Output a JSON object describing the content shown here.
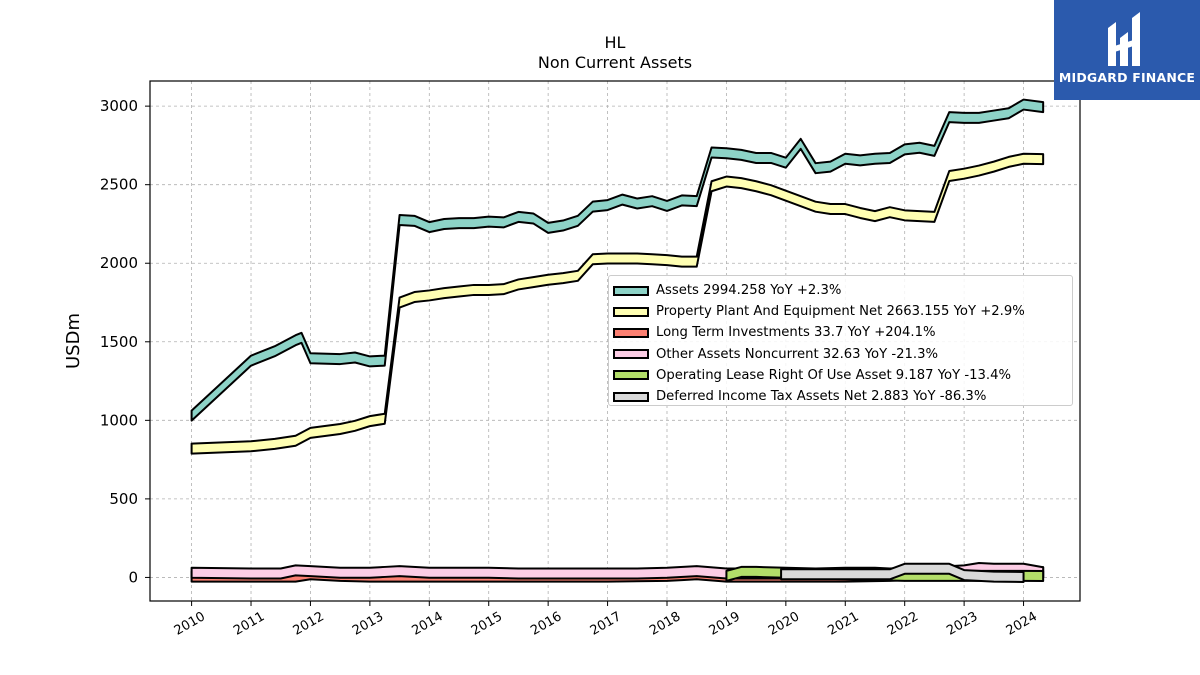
{
  "title": "HL",
  "subtitle": "Non Current  Assets",
  "logo": {
    "text": "MIDGARD FINANCE",
    "color": "#2b5aad"
  },
  "chart_data": {
    "type": "area",
    "ylabel": "USDm",
    "xlim": [
      2009.3,
      2024.95
    ],
    "ylim": [
      -150,
      3160
    ],
    "grid": true,
    "legend_position": "center-right",
    "x_ticks": [
      "2010",
      "2011",
      "2012",
      "2013",
      "2014",
      "2015",
      "2016",
      "2017",
      "2018",
      "2019",
      "2020",
      "2021",
      "2022",
      "2023",
      "2024"
    ],
    "y_ticks": [
      0,
      500,
      1000,
      1500,
      2000,
      2500,
      3000
    ],
    "series": [
      {
        "name": "Assets",
        "legend": "Assets  2994.258 YoY +2.3%",
        "color": "#8dd3c7",
        "points": [
          [
            2010.0,
            1030
          ],
          [
            2011.0,
            1380
          ],
          [
            2011.4,
            1440
          ],
          [
            2011.75,
            1510
          ],
          [
            2011.85,
            1525
          ],
          [
            2012.0,
            1395
          ],
          [
            2012.5,
            1390
          ],
          [
            2012.75,
            1400
          ],
          [
            2013.0,
            1375
          ],
          [
            2013.25,
            1380
          ],
          [
            2013.5,
            2275
          ],
          [
            2013.75,
            2270
          ],
          [
            2014.0,
            2230
          ],
          [
            2014.25,
            2250
          ],
          [
            2014.5,
            2255
          ],
          [
            2014.75,
            2255
          ],
          [
            2015.0,
            2265
          ],
          [
            2015.25,
            2260
          ],
          [
            2015.5,
            2295
          ],
          [
            2015.75,
            2285
          ],
          [
            2016.0,
            2225
          ],
          [
            2016.25,
            2240
          ],
          [
            2016.5,
            2270
          ],
          [
            2016.75,
            2360
          ],
          [
            2017.0,
            2370
          ],
          [
            2017.25,
            2405
          ],
          [
            2017.5,
            2380
          ],
          [
            2017.75,
            2395
          ],
          [
            2018.0,
            2365
          ],
          [
            2018.25,
            2400
          ],
          [
            2018.5,
            2395
          ],
          [
            2018.75,
            2705
          ],
          [
            2019.0,
            2700
          ],
          [
            2019.25,
            2690
          ],
          [
            2019.5,
            2670
          ],
          [
            2019.75,
            2670
          ],
          [
            2020.0,
            2640
          ],
          [
            2020.25,
            2760
          ],
          [
            2020.5,
            2605
          ],
          [
            2020.75,
            2615
          ],
          [
            2021.0,
            2665
          ],
          [
            2021.25,
            2655
          ],
          [
            2021.5,
            2665
          ],
          [
            2021.75,
            2670
          ],
          [
            2022.0,
            2725
          ],
          [
            2022.25,
            2735
          ],
          [
            2022.5,
            2715
          ],
          [
            2022.75,
            2930
          ],
          [
            2023.0,
            2925
          ],
          [
            2023.25,
            2925
          ],
          [
            2023.5,
            2940
          ],
          [
            2023.75,
            2955
          ],
          [
            2024.0,
            3010
          ],
          [
            2024.33,
            2994
          ]
        ]
      },
      {
        "name": "Property Plant And Equipment Net",
        "legend": "Property Plant And Equipment Net  2663.155 YoY +2.9%",
        "color": "#ffffb3",
        "points": [
          [
            2010.0,
            820
          ],
          [
            2011.0,
            835
          ],
          [
            2011.4,
            850
          ],
          [
            2011.75,
            870
          ],
          [
            2012.0,
            920
          ],
          [
            2012.5,
            945
          ],
          [
            2012.75,
            965
          ],
          [
            2013.0,
            995
          ],
          [
            2013.25,
            1010
          ],
          [
            2013.5,
            1750
          ],
          [
            2013.75,
            1785
          ],
          [
            2014.0,
            1795
          ],
          [
            2014.25,
            1810
          ],
          [
            2014.5,
            1820
          ],
          [
            2014.75,
            1830
          ],
          [
            2015.0,
            1830
          ],
          [
            2015.25,
            1835
          ],
          [
            2015.5,
            1865
          ],
          [
            2015.75,
            1880
          ],
          [
            2016.0,
            1895
          ],
          [
            2016.25,
            1905
          ],
          [
            2016.5,
            1920
          ],
          [
            2016.75,
            2025
          ],
          [
            2017.0,
            2030
          ],
          [
            2017.25,
            2030
          ],
          [
            2017.5,
            2030
          ],
          [
            2017.75,
            2025
          ],
          [
            2018.0,
            2020
          ],
          [
            2018.25,
            2010
          ],
          [
            2018.5,
            2010
          ],
          [
            2018.75,
            2490
          ],
          [
            2019.0,
            2520
          ],
          [
            2019.25,
            2510
          ],
          [
            2019.5,
            2490
          ],
          [
            2019.75,
            2465
          ],
          [
            2020.0,
            2430
          ],
          [
            2020.25,
            2395
          ],
          [
            2020.5,
            2360
          ],
          [
            2020.75,
            2345
          ],
          [
            2021.0,
            2345
          ],
          [
            2021.25,
            2320
          ],
          [
            2021.5,
            2300
          ],
          [
            2021.75,
            2325
          ],
          [
            2022.0,
            2305
          ],
          [
            2022.25,
            2300
          ],
          [
            2022.5,
            2295
          ],
          [
            2022.75,
            2555
          ],
          [
            2023.0,
            2570
          ],
          [
            2023.25,
            2590
          ],
          [
            2023.5,
            2615
          ],
          [
            2023.75,
            2645
          ],
          [
            2024.0,
            2665
          ],
          [
            2024.33,
            2663
          ]
        ]
      },
      {
        "name": "Long Term Investments",
        "legend": "Long Term Investments  33.7 YoY +204.1%",
        "color": "#fb8072",
        "points": [
          [
            2010.0,
            5
          ],
          [
            2011.0,
            5
          ],
          [
            2011.75,
            5
          ],
          [
            2012.0,
            20
          ],
          [
            2012.5,
            10
          ],
          [
            2013.0,
            5
          ],
          [
            2013.5,
            5
          ],
          [
            2014.0,
            5
          ],
          [
            2015.0,
            5
          ],
          [
            2016.0,
            5
          ],
          [
            2017.0,
            5
          ],
          [
            2018.0,
            10
          ],
          [
            2018.25,
            15
          ],
          [
            2018.5,
            20
          ],
          [
            2019.0,
            5
          ],
          [
            2020.0,
            5
          ],
          [
            2021.0,
            5
          ],
          [
            2021.75,
            10
          ],
          [
            2022.0,
            15
          ],
          [
            2022.75,
            20
          ],
          [
            2023.0,
            40
          ],
          [
            2023.5,
            35
          ],
          [
            2024.0,
            25
          ],
          [
            2024.33,
            34
          ]
        ]
      },
      {
        "name": "Other Assets Noncurrent",
        "legend": "Other Assets Noncurrent  32.63 YoY -21.3%",
        "color": "#fccde5",
        "points": [
          [
            2010.0,
            30
          ],
          [
            2011.0,
            25
          ],
          [
            2011.5,
            25
          ],
          [
            2011.75,
            45
          ],
          [
            2012.0,
            40
          ],
          [
            2012.5,
            30
          ],
          [
            2013.0,
            30
          ],
          [
            2013.25,
            35
          ],
          [
            2013.5,
            40
          ],
          [
            2014.0,
            30
          ],
          [
            2014.5,
            30
          ],
          [
            2015.0,
            30
          ],
          [
            2015.5,
            25
          ],
          [
            2016.0,
            25
          ],
          [
            2016.5,
            25
          ],
          [
            2017.0,
            25
          ],
          [
            2017.5,
            25
          ],
          [
            2018.0,
            30
          ],
          [
            2018.5,
            40
          ],
          [
            2019.0,
            25
          ],
          [
            2019.5,
            25
          ],
          [
            2020.0,
            25
          ],
          [
            2020.5,
            25
          ],
          [
            2021.0,
            30
          ],
          [
            2021.5,
            30
          ],
          [
            2021.75,
            25
          ],
          [
            2022.0,
            30
          ],
          [
            2022.5,
            35
          ],
          [
            2023.0,
            45
          ],
          [
            2023.25,
            60
          ],
          [
            2023.5,
            55
          ],
          [
            2024.0,
            55
          ],
          [
            2024.33,
            33
          ]
        ]
      },
      {
        "name": "Operating Lease Right Of Use Asset",
        "legend": "Operating Lease Right Of Use Asset  9.187 YoY -13.4%",
        "color": "#b3de69",
        "points": [
          [
            2019.0,
            10
          ],
          [
            2019.25,
            35
          ],
          [
            2019.5,
            35
          ],
          [
            2020.0,
            30
          ],
          [
            2020.5,
            25
          ],
          [
            2021.0,
            20
          ],
          [
            2021.5,
            15
          ],
          [
            2022.0,
            10
          ],
          [
            2022.5,
            10
          ],
          [
            2023.0,
            10
          ],
          [
            2023.5,
            10
          ],
          [
            2024.0,
            10
          ],
          [
            2024.33,
            9
          ]
        ]
      },
      {
        "name": "Deferred Income Tax Assets Net",
        "legend": "Deferred Income Tax Assets Net  2.883 YoY -86.3%",
        "color": "#d9d9d9",
        "points": [
          [
            2019.92,
            20
          ],
          [
            2020.5,
            20
          ],
          [
            2021.0,
            20
          ],
          [
            2021.5,
            20
          ],
          [
            2021.75,
            20
          ],
          [
            2022.0,
            55
          ],
          [
            2022.5,
            55
          ],
          [
            2022.75,
            55
          ],
          [
            2023.0,
            15
          ],
          [
            2023.5,
            5
          ],
          [
            2024.0,
            3
          ]
        ]
      }
    ]
  }
}
